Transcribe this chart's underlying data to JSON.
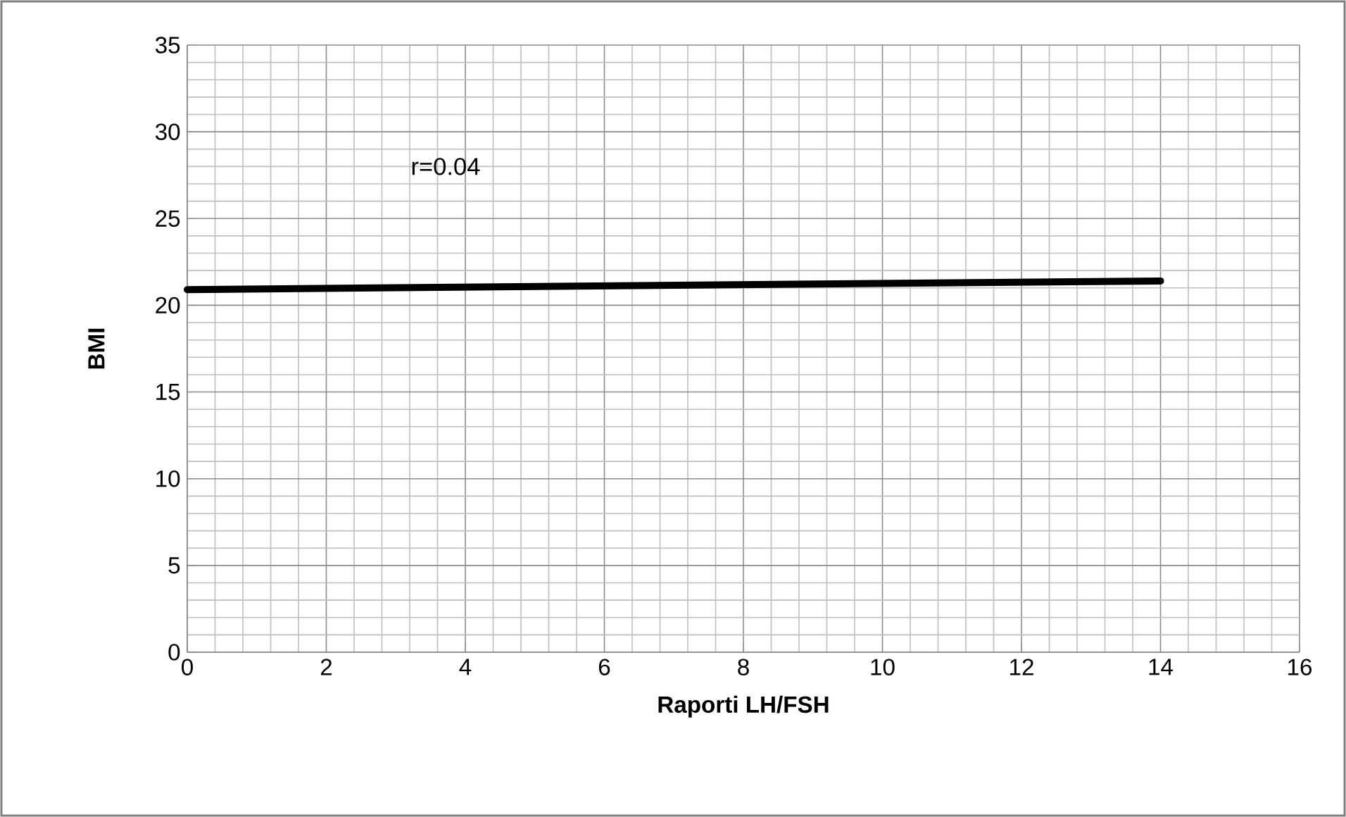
{
  "chart_data": {
    "type": "line",
    "xlabel": "Raporti LH/FSH",
    "ylabel": "BMI",
    "x": [
      0,
      14
    ],
    "series": [
      {
        "color": "#000000",
        "values": [
          20.9,
          21.4
        ]
      }
    ],
    "xlim": [
      0,
      16
    ],
    "xticks": [
      0,
      2,
      4,
      6,
      8,
      10,
      12,
      14,
      16
    ],
    "ylim": [
      0,
      35
    ],
    "yticks": [
      0,
      5,
      10,
      15,
      20,
      25,
      30,
      35
    ],
    "grid": true,
    "marker": "none",
    "line_style": "solid",
    "annotations": [
      "r=0.04"
    ]
  }
}
